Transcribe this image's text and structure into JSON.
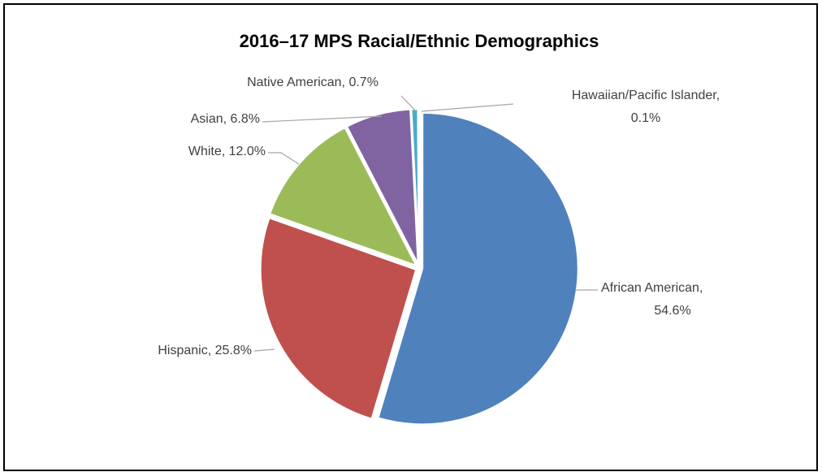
{
  "chart_data": {
    "type": "pie",
    "title": "2016–17 MPS Racial/Ethnic Demographics",
    "values": [
      54.6,
      25.8,
      12.0,
      6.8,
      0.7,
      0.1
    ],
    "value_labels": [
      "African American, 54.6%",
      "Hispanic, 25.8%",
      "White, 12.0%",
      "Asian, 6.8%",
      "Native American, 0.7%",
      "Hawaiian/Pacific Islander, 0.1%"
    ],
    "colors": [
      "#4f81bd",
      "#c0504d",
      "#9bbb59",
      "#8064a2",
      "#4bacc6",
      "#f79646"
    ]
  }
}
